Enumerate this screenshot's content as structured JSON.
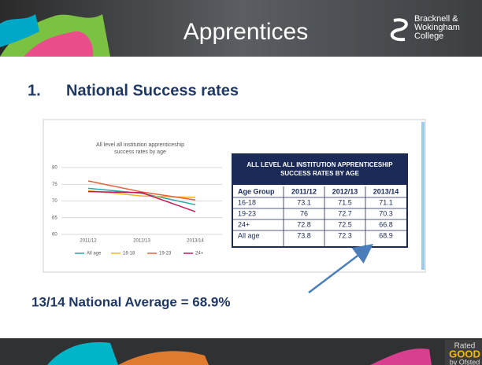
{
  "header": {
    "title": "Apprentices",
    "logo": [
      "Bracknell &",
      "Wokingham",
      "College"
    ]
  },
  "heading": {
    "number": "1.",
    "text": "National Success rates"
  },
  "chart": {
    "type": "line",
    "title": [
      "All level all institution apprenticeship",
      "success rates by age"
    ],
    "categories": [
      "2011/12",
      "2012/13",
      "2013/14"
    ],
    "series": [
      {
        "name": "All age",
        "color": "#2aa6a6",
        "values": [
          73.8,
          72.3,
          68.9
        ]
      },
      {
        "name": "16-18",
        "color": "#f0b323",
        "values": [
          73.1,
          71.5,
          71.1
        ]
      },
      {
        "name": "19-23",
        "color": "#e8603c",
        "values": [
          76,
          72.7,
          70.3
        ]
      },
      {
        "name": "24+",
        "color": "#c2185b",
        "values": [
          72.8,
          72.5,
          66.8
        ]
      }
    ],
    "ylim": [
      60,
      80
    ],
    "yticks": [
      60,
      65,
      70,
      75,
      80
    ],
    "grid": true
  },
  "table": {
    "title": [
      "ALL LEVEL ALL INSTITUTION APPRENTICESHIP",
      "SUCCESS RATES BY AGE"
    ],
    "columns": [
      "Age Group",
      "2011/12",
      "2012/13",
      "2013/14"
    ],
    "rows": [
      [
        "16-18",
        "73.1",
        "71.5",
        "71.1"
      ],
      [
        "19-23",
        "76",
        "72.7",
        "70.3"
      ],
      [
        "24+",
        "72.8",
        "72.5",
        "66.8"
      ],
      [
        "All age",
        "73.8",
        "72.3",
        "68.9"
      ]
    ]
  },
  "annotation": "13/14 National Average = 68.9%",
  "badge": [
    "Rated",
    "GOOD",
    "by Ofsted"
  ]
}
